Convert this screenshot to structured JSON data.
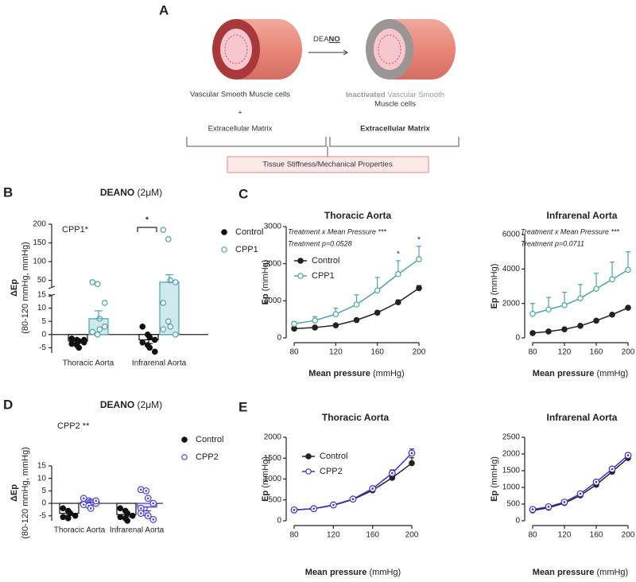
{
  "panel_labels": [
    "A",
    "B",
    "C",
    "D",
    "E"
  ],
  "diagram": {
    "reagent": [
      "DEA",
      "NO"
    ],
    "left_cells": "Vascular Smooth Muscle cells",
    "plus": "+",
    "left_matrix": "Extracellular Matrix",
    "right_cells": [
      "Inactivated",
      "Vascular Smooth",
      "Muscle cells"
    ],
    "right_matrix": "Extracellular Matrix",
    "outcome": "Tissue Stiffness/Mechanical Properties"
  },
  "chart_data": [
    {
      "type": "bar",
      "title": "DEANO",
      "subtitle": "(2μM)",
      "ylabel": "ΔEp",
      "ylabel_note": "(80-120 mmHg, mmHg)",
      "annotations": [
        "CPP1*"
      ],
      "significance_label": "*",
      "legend": "right",
      "categories": [
        "Thoracic Aorta",
        "Infrarenal Aorta"
      ],
      "ylim": [
        -7,
        200
      ],
      "ybreak": [
        15,
        30
      ],
      "yticks": [
        -5,
        0,
        5,
        10,
        15,
        50,
        100,
        150,
        200
      ],
      "series": [
        {
          "name": "Control",
          "color": "#111111",
          "fill": "#ffffff",
          "marker": "filled",
          "values": [
            -2.5,
            -2
          ],
          "errors": [
            0.6,
            1.4
          ],
          "points": [
            [
              -1.5,
              -2,
              -2.5,
              -3,
              -3.5,
              -4,
              -5,
              -2
            ],
            [
              3,
              0,
              -1,
              -2,
              -3,
              -4,
              -5,
              -6.5
            ]
          ]
        },
        {
          "name": "CPP1",
          "color": "#4aa3ad",
          "fill": "#cfe8ee",
          "marker": "open",
          "values": [
            6,
            45
          ],
          "errors": [
            3,
            20
          ],
          "points": [
            [
              45,
              40,
              6,
              3,
              1,
              0,
              2,
              12
            ],
            [
              185,
              160,
              50,
              45,
              12,
              5,
              3,
              0,
              2
            ]
          ]
        }
      ]
    },
    {
      "type": "line",
      "title": "Thoracic Aorta",
      "ylabel": "Ep",
      "yunit": "(mmHg)",
      "xlabel": "Mean pressure",
      "xunit": "(mmHg)",
      "annotations": [
        "Treatment x Mean Pressure ***",
        "Treatment p=0.0528"
      ],
      "legend": "upper left",
      "x": [
        80,
        100,
        120,
        140,
        160,
        180,
        200
      ],
      "xlim": [
        80,
        200
      ],
      "xticks": [
        80,
        120,
        160,
        200
      ],
      "ylim": [
        0,
        3000
      ],
      "yticks": [
        0,
        1000,
        2000,
        3000
      ],
      "point_labels": [
        {
          "x": 180,
          "label": "*"
        },
        {
          "x": 200,
          "label": "*"
        }
      ],
      "series": [
        {
          "name": "Control",
          "color": "#222222",
          "marker": "filled",
          "values": [
            250,
            280,
            340,
            480,
            680,
            960,
            1340
          ],
          "errors": [
            20,
            20,
            30,
            40,
            50,
            60,
            70
          ]
        },
        {
          "name": "CPP1",
          "color": "#4aa3ad",
          "marker": "open",
          "values": [
            380,
            470,
            640,
            900,
            1280,
            1720,
            2120
          ],
          "errors": [
            60,
            100,
            160,
            260,
            350,
            360,
            350
          ]
        }
      ]
    },
    {
      "type": "line",
      "title": "Infrarenal Aorta",
      "ylabel": "Ep",
      "yunit": "(mmHg)",
      "xlabel": "Mean pressure",
      "xunit": "(mmHg)",
      "annotations": [
        "Treatment x Mean Pressure ***",
        "Treatment p=0.0711"
      ],
      "x": [
        80,
        100,
        120,
        140,
        160,
        180,
        200
      ],
      "xlim": [
        80,
        200
      ],
      "xticks": [
        80,
        120,
        160,
        200
      ],
      "ylim": [
        0,
        6000
      ],
      "yticks": [
        0,
        2000,
        4000,
        6000
      ],
      "series": [
        {
          "name": "Control",
          "color": "#222222",
          "marker": "filled",
          "values": [
            280,
            370,
            500,
            700,
            1000,
            1350,
            1750
          ],
          "errors": [
            30,
            30,
            40,
            50,
            60,
            70,
            80
          ]
        },
        {
          "name": "CPP1",
          "color": "#4aa3ad",
          "marker": "open",
          "values": [
            1400,
            1650,
            1900,
            2300,
            2850,
            3400,
            3950
          ],
          "errors": [
            600,
            700,
            750,
            800,
            900,
            1000,
            1050
          ]
        }
      ]
    },
    {
      "type": "bar",
      "title": "DEANO",
      "subtitle": "(2μM)",
      "ylabel": "ΔEp",
      "ylabel_note": "(80-120 mmHg, mmHg)",
      "annotations": [
        "CPP2 **"
      ],
      "legend": "right",
      "categories": [
        "Thoracic Aorta",
        "Infrarenal Aorta"
      ],
      "ylim": [
        -7,
        15
      ],
      "yticks": [
        -5,
        0,
        5,
        10,
        15
      ],
      "series": [
        {
          "name": "Control",
          "color": "#111111",
          "fill": "#ffffff",
          "marker": "filled",
          "values": [
            -4,
            -4.5
          ],
          "errors": [
            0.8,
            0.9
          ],
          "points": [
            [
              -2,
              -3,
              -4,
              -5,
              -5.5,
              -6,
              -4
            ],
            [
              -2,
              -3,
              -4,
              -5,
              -5.5,
              -6,
              -7
            ]
          ]
        },
        {
          "name": "CPP2",
          "color": "#4a3fd8",
          "fill": "#e6e4fb",
          "marker": "ring-dot",
          "values": [
            0.5,
            -1.5
          ],
          "errors": [
            0.8,
            1.5
          ],
          "points": [
            [
              2,
              1,
              0.5,
              0,
              -0.5,
              -1,
              -2,
              1
            ],
            [
              5.5,
              5,
              2,
              0,
              -2,
              -4,
              -5,
              -6.5,
              -4
            ]
          ]
        }
      ]
    },
    {
      "type": "line",
      "title": "Thoracic Aorta",
      "ylabel": "Ep",
      "yunit": "(mmHg)",
      "xlabel": "Mean pressure",
      "xunit": "(mmHg)",
      "legend": "upper left",
      "x": [
        80,
        100,
        120,
        140,
        160,
        180,
        200
      ],
      "xlim": [
        80,
        200
      ],
      "xticks": [
        80,
        120,
        160,
        200
      ],
      "ylim": [
        0,
        2000
      ],
      "yticks": [
        0,
        500,
        1000,
        1500,
        2000
      ],
      "series": [
        {
          "name": "Control",
          "color": "#222222",
          "marker": "filled",
          "values": [
            260,
            290,
            370,
            510,
            730,
            1030,
            1380
          ],
          "errors": [
            20,
            20,
            30,
            40,
            60,
            90,
            130
          ]
        },
        {
          "name": "CPP2",
          "color": "#3a2fd0",
          "marker": "ring-dot",
          "values": [
            260,
            290,
            380,
            520,
            770,
            1140,
            1620
          ],
          "errors": [
            20,
            20,
            30,
            40,
            60,
            80,
            100
          ]
        }
      ]
    },
    {
      "type": "line",
      "title": "Infrarenal Aorta",
      "ylabel": "Ep",
      "yunit": "(mmHg)",
      "xlabel": "Mean pressure",
      "xunit": "(mmHg)",
      "x": [
        80,
        100,
        120,
        140,
        160,
        180,
        200
      ],
      "xlim": [
        80,
        200
      ],
      "xticks": [
        80,
        120,
        160,
        200
      ],
      "ylim": [
        0,
        2500
      ],
      "yticks": [
        0,
        500,
        1000,
        1500,
        2000,
        2500
      ],
      "series": [
        {
          "name": "Control",
          "color": "#222222",
          "marker": "filled",
          "values": [
            310,
            390,
            530,
            760,
            1080,
            1470,
            1880
          ],
          "errors": [
            20,
            20,
            30,
            40,
            50,
            60,
            70
          ]
        },
        {
          "name": "CPP2",
          "color": "#3a2fd0",
          "marker": "ring-dot",
          "values": [
            340,
            420,
            560,
            810,
            1160,
            1550,
            1960
          ],
          "errors": [
            20,
            20,
            30,
            40,
            50,
            60,
            70
          ]
        }
      ]
    }
  ]
}
